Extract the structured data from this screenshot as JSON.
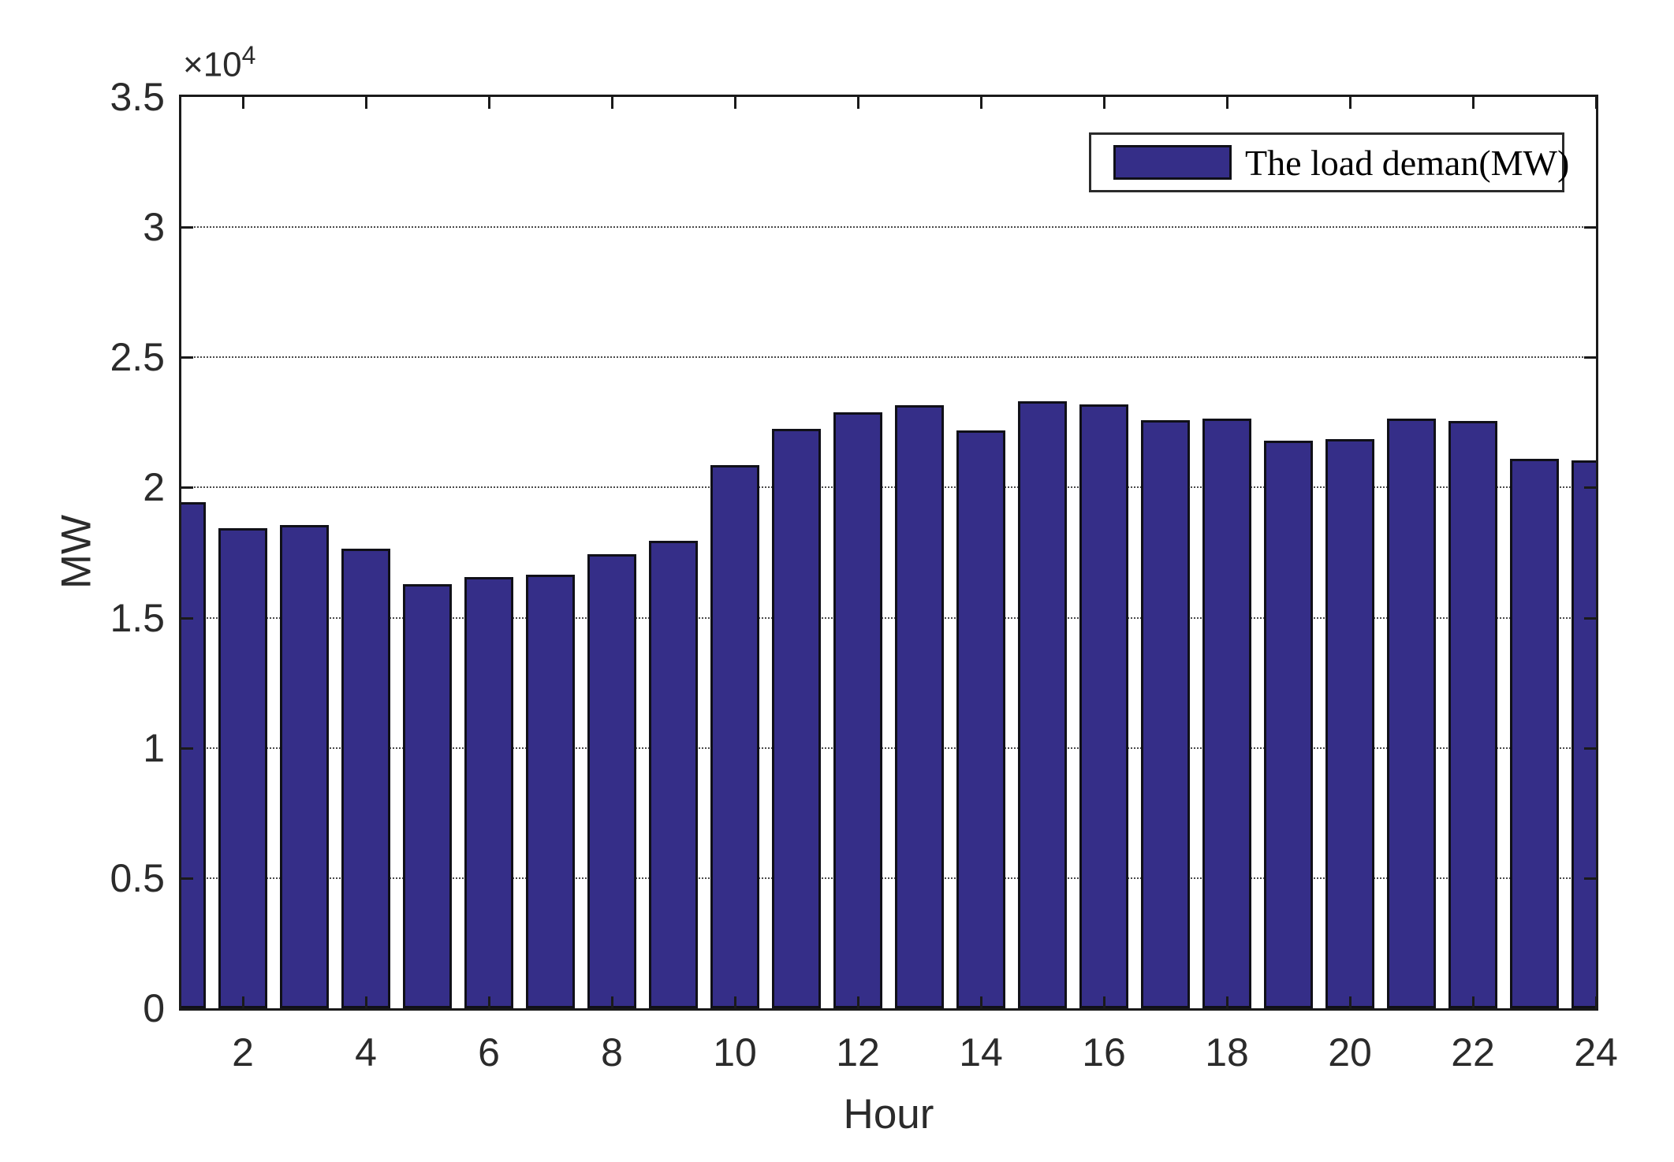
{
  "style": {
    "bar_fill": "#352E88",
    "bar_edge": "#101018",
    "axis_color": "#1a1a1a",
    "grid_color": "#4a4a4a",
    "background": "#ffffff"
  },
  "chart_data": {
    "type": "bar",
    "title": "",
    "xlabel": "Hour",
    "ylabel": "MW",
    "y_exponent_base": "×10",
    "y_exponent_power": "4",
    "legend": {
      "label": "The load deman(MW)",
      "position": "upper-right"
    },
    "grid": {
      "x": false,
      "y": true,
      "line_style": "dotted"
    },
    "xlim": [
      1,
      24
    ],
    "ylim": [
      0,
      35000
    ],
    "bar_width_fraction": 0.8,
    "x": [
      1,
      2,
      3,
      4,
      5,
      6,
      7,
      8,
      9,
      10,
      11,
      12,
      13,
      14,
      15,
      16,
      17,
      18,
      19,
      20,
      21,
      22,
      23,
      24
    ],
    "values": [
      19450,
      18450,
      18550,
      17650,
      16300,
      16550,
      16650,
      17450,
      17950,
      20850,
      22250,
      22900,
      23150,
      22200,
      23300,
      23200,
      22600,
      22650,
      21800,
      21850,
      22650,
      22550,
      21100,
      21050
    ],
    "xticks": {
      "values": [
        2,
        4,
        6,
        8,
        10,
        12,
        14,
        16,
        18,
        20,
        22,
        24
      ],
      "labels": [
        "2",
        "4",
        "6",
        "8",
        "10",
        "12",
        "14",
        "16",
        "18",
        "20",
        "22",
        "24"
      ]
    },
    "yticks": {
      "values": [
        0,
        5000,
        10000,
        15000,
        20000,
        25000,
        30000,
        35000
      ],
      "labels": [
        "0",
        "0.5",
        "1",
        "1.5",
        "2",
        "2.5",
        "3",
        "3.5"
      ]
    }
  }
}
